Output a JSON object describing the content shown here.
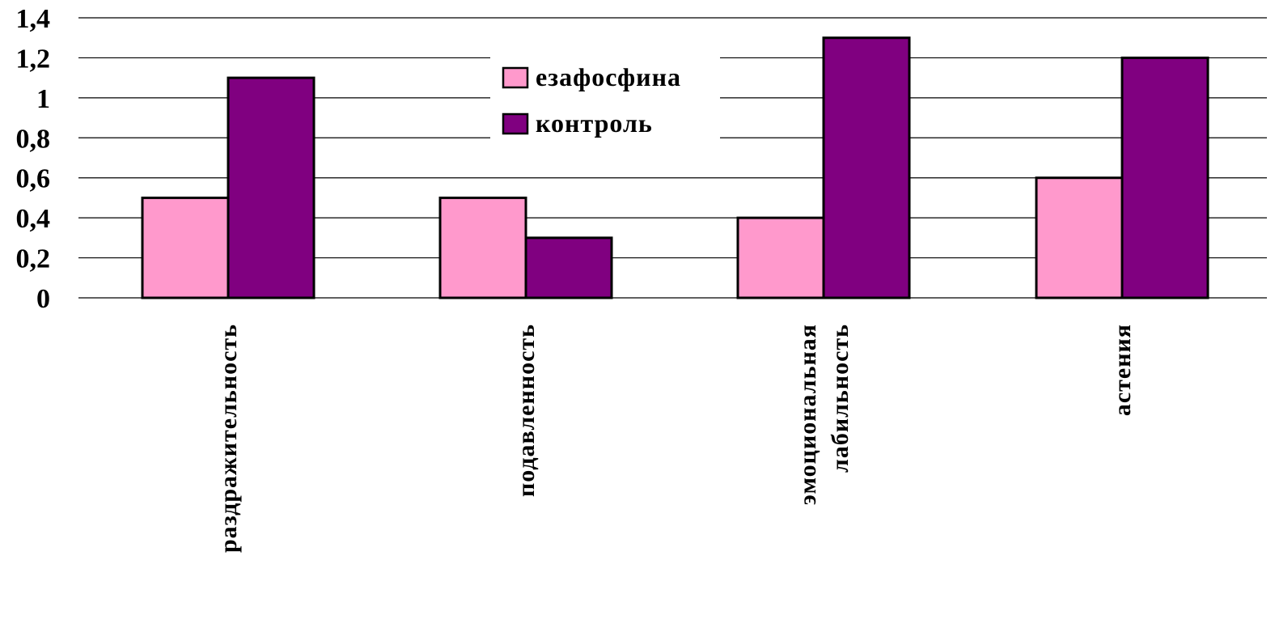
{
  "colors": {
    "series_1": "#FF99CC",
    "series_2": "#800080",
    "gridline": "#000000",
    "background": "#ffffff"
  },
  "chart_data": {
    "type": "bar",
    "title": "",
    "xlabel": "",
    "ylabel": "",
    "categories": [
      [
        "раздражительность"
      ],
      [
        "подавленность"
      ],
      [
        "эмоциональная",
        "лабильность"
      ],
      [
        "астения"
      ]
    ],
    "series": [
      {
        "name": "езафосфина",
        "values": [
          0.5,
          0.5,
          0.4,
          0.6
        ]
      },
      {
        "name": "контроль",
        "values": [
          1.1,
          0.3,
          1.3,
          1.2
        ]
      }
    ],
    "ylim": [
      0,
      1.4
    ],
    "yticks": [
      "0",
      "0,2",
      "0,4",
      "0,6",
      "0,8",
      "1",
      "1,2",
      "1,4"
    ],
    "grid": true,
    "legend_position": "top-center"
  }
}
